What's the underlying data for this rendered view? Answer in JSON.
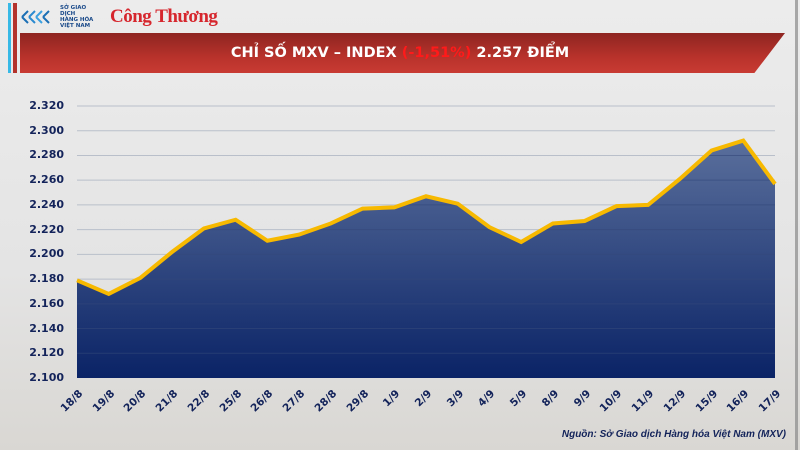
{
  "header": {
    "logo_org_line1": "SỞ GIAO DỊCH",
    "logo_org_line2": "HÀNG HÓA",
    "logo_org_line3": "VIỆT NAM",
    "logo_brand": "Công Thương"
  },
  "title": {
    "prefix": "CHỈ SỐ MXV – INDEX ",
    "change": "(-1,51%)",
    "suffix": " 2.257 ĐIỂM"
  },
  "colors": {
    "area_top": "#5a6f9c",
    "area_bottom": "#0a2366",
    "line": "#f7b900",
    "banner": "#b8322b",
    "change_text": "#ff1a1a",
    "axis_text": "#13235a"
  },
  "source": "Nguồn: Sở Giao dịch Hàng hóa Việt Nam (MXV)",
  "chart_data": {
    "type": "area",
    "title": "CHỈ SỐ MXV – INDEX (-1,51%) 2.257 ĐIỂM",
    "xlabel": "",
    "ylabel": "",
    "ylim": [
      2100,
      2320
    ],
    "yticks": [
      "2.100",
      "2.120",
      "2.140",
      "2.160",
      "2.180",
      "2.200",
      "2.220",
      "2.240",
      "2.260",
      "2.280",
      "2.300",
      "2.320"
    ],
    "grid": true,
    "legend": "none",
    "categories": [
      "18/8",
      "19/8",
      "20/8",
      "21/8",
      "22/8",
      "25/8",
      "26/8",
      "27/8",
      "28/8",
      "29/8",
      "1/9",
      "2/9",
      "3/9",
      "4/9",
      "5/9",
      "8/9",
      "9/9",
      "10/9",
      "11/9",
      "12/9",
      "15/9",
      "16/9",
      "17/9"
    ],
    "series": [
      {
        "name": "MXV-Index",
        "values": [
          2179,
          2168,
          2181,
          2202,
          2221,
          2228,
          2211,
          2216,
          2225,
          2237,
          2238,
          2247,
          2241,
          2222,
          2210,
          2225,
          2227,
          2239,
          2240,
          2261,
          2284,
          2292,
          2257
        ]
      }
    ]
  }
}
